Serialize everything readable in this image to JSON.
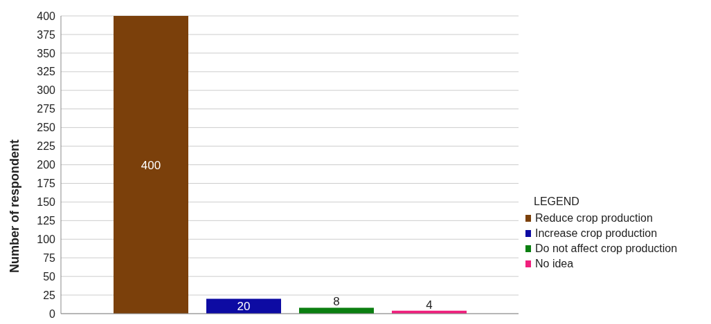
{
  "chart_data": {
    "type": "bar",
    "ylabel": "Number of respondent",
    "legend_title": "LEGEND",
    "categories": [
      null
    ],
    "series": [
      {
        "name": "Reduce crop production",
        "color": "#7b400b",
        "values": [
          400
        ]
      },
      {
        "name": "Increase crop production",
        "color": "#0d0ba3",
        "values": [
          20
        ]
      },
      {
        "name": "Do not affect crop production",
        "color": "#0b7f11",
        "values": [
          8
        ]
      },
      {
        "name": "No idea",
        "color": "#f0207d",
        "values": [
          4
        ]
      }
    ],
    "ylim": [
      0,
      400
    ],
    "yticks": [
      0,
      25,
      50,
      75,
      100,
      125,
      150,
      175,
      200,
      225,
      250,
      275,
      300,
      325,
      350,
      375,
      400
    ],
    "grid": "y",
    "legend": "right",
    "data_labels": true
  }
}
